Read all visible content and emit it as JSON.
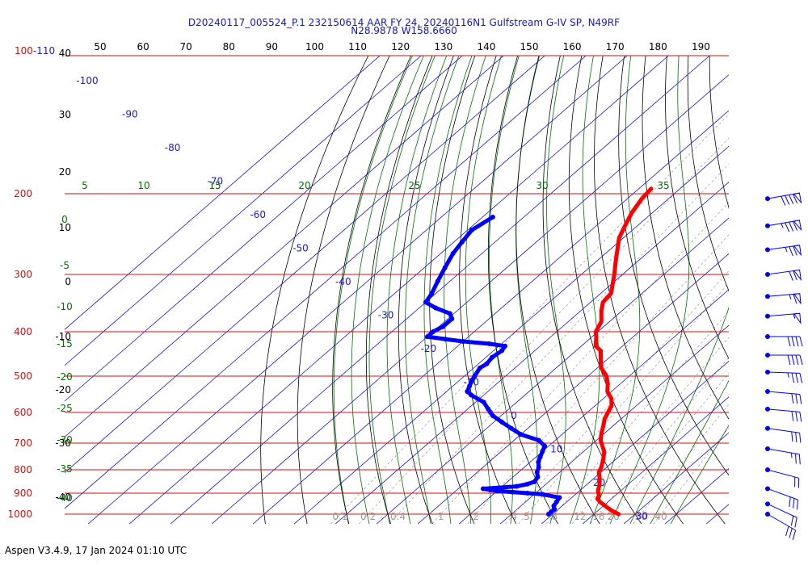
{
  "header": {
    "title": "D20240117_005524_P.1 232150614 AAR FY 24, 20240116N1 Gulfstream G-IV SP, N49RF",
    "subtitle": "N28.9878 W158.6660"
  },
  "footer": {
    "version": "Aspen V3.4.9, 17 Jan 2024  01:10 UTC"
  },
  "colors": {
    "isobar": "#d01010",
    "isotherm": "#1a1ad0",
    "dry_adiabat": "#000000",
    "moist_adiabat": "#007000",
    "mixing_ratio": "#9a9a9a",
    "temperature": "#ff0000",
    "dewpoint": "#0000ff"
  },
  "chart_data": {
    "type": "skew-t",
    "ylabel": "",
    "xlabel": "",
    "y_scale": "log-pressure",
    "ylim_hpa": [
      1000,
      100
    ],
    "pressure_levels": [
      {
        "value": 1000,
        "label": "1000"
      },
      {
        "value": 900,
        "label": "900"
      },
      {
        "value": 800,
        "label": "800"
      },
      {
        "value": 700,
        "label": "700"
      },
      {
        "value": 600,
        "label": "600"
      },
      {
        "value": 500,
        "label": "500"
      },
      {
        "value": 400,
        "label": "400"
      },
      {
        "value": 300,
        "label": "300"
      },
      {
        "value": 200,
        "label": "200"
      },
      {
        "value": 100,
        "label": "100-110"
      }
    ],
    "isotherm_labels": [
      {
        "t": -100,
        "label": "-100"
      },
      {
        "t": -90,
        "label": "-90"
      },
      {
        "t": -80,
        "label": "-80"
      },
      {
        "t": -70,
        "label": "-70"
      },
      {
        "t": -60,
        "label": "-60"
      },
      {
        "t": -50,
        "label": "-50"
      },
      {
        "t": -40,
        "label": "-40"
      },
      {
        "t": -30,
        "label": "-30"
      },
      {
        "t": -20,
        "label": "-20"
      },
      {
        "t": -10,
        "label": "-10"
      },
      {
        "t": 0,
        "label": "0"
      },
      {
        "t": 10,
        "label": "10"
      },
      {
        "t": 20,
        "label": "20"
      },
      {
        "t": 30,
        "label": "30"
      }
    ],
    "dry_adiabat_labels": [
      "50",
      "60",
      "70",
      "80",
      "90",
      "100",
      "110",
      "120",
      "130",
      "140",
      "150",
      "160",
      "170",
      "180",
      "190"
    ],
    "dry_adiabat_left_labels": [
      "40",
      "30",
      "20",
      "10",
      "0",
      "-10",
      "-20",
      "-30",
      "-40"
    ],
    "moist_adiabat_labels": [
      "5",
      "10",
      "15",
      "20",
      "25",
      "30",
      "35"
    ],
    "moist_adiabat_left_labels": [
      "0",
      "-5",
      "-10",
      "-15",
      "-20",
      "-25",
      "-30",
      "-35",
      "-40"
    ],
    "mixing_ratio_labels": [
      "0.1",
      "0.2",
      "0.4",
      "1",
      "2",
      "4",
      "5",
      "8",
      "12",
      "16",
      "20",
      "30",
      "40"
    ],
    "temperature": [
      [
        1000,
        26.0
      ],
      [
        980,
        23.0
      ],
      [
        960,
        20.5
      ],
      [
        940,
        18.0
      ],
      [
        925,
        16.5
      ],
      [
        910,
        16.0
      ],
      [
        890,
        14.5
      ],
      [
        860,
        13.0
      ],
      [
        830,
        11.0
      ],
      [
        810,
        9.5
      ],
      [
        790,
        8.7
      ],
      [
        760,
        7.0
      ],
      [
        730,
        5.0
      ],
      [
        710,
        3.0
      ],
      [
        690,
        1.0
      ],
      [
        670,
        -0.5
      ],
      [
        640,
        -2.5
      ],
      [
        620,
        -4.0
      ],
      [
        600,
        -5.0
      ],
      [
        580,
        -6.0
      ],
      [
        560,
        -8.0
      ],
      [
        540,
        -11.0
      ],
      [
        520,
        -13.0
      ],
      [
        500,
        -15.5
      ],
      [
        480,
        -19.0
      ],
      [
        460,
        -21.5
      ],
      [
        440,
        -24.0
      ],
      [
        430,
        -26.5
      ],
      [
        410,
        -29.0
      ],
      [
        400,
        -30.5
      ],
      [
        380,
        -32.0
      ],
      [
        360,
        -35.0
      ],
      [
        345,
        -37.0
      ],
      [
        330,
        -37.5
      ],
      [
        300,
        -42.0
      ],
      [
        280,
        -45.5
      ],
      [
        250,
        -51.0
      ],
      [
        235,
        -53.0
      ],
      [
        220,
        -55.0
      ],
      [
        205,
        -56.5
      ],
      [
        195,
        -57.0
      ]
    ],
    "dewpoint": [
      [
        1000,
        9.0
      ],
      [
        990,
        9.0
      ],
      [
        975,
        9.0
      ],
      [
        960,
        8.0
      ],
      [
        940,
        7.5
      ],
      [
        920,
        7.0
      ],
      [
        905,
        2.0
      ],
      [
        900,
        -2.0
      ],
      [
        895,
        -6.0
      ],
      [
        890,
        -10.0
      ],
      [
        885,
        -12.0
      ],
      [
        880,
        -14.0
      ],
      [
        870,
        -6.5
      ],
      [
        860,
        -4.5
      ],
      [
        850,
        -3.5
      ],
      [
        830,
        -4.0
      ],
      [
        810,
        -5.5
      ],
      [
        790,
        -6.5
      ],
      [
        770,
        -8.0
      ],
      [
        750,
        -9.0
      ],
      [
        730,
        -10.0
      ],
      [
        710,
        -11.0
      ],
      [
        690,
        -14.0
      ],
      [
        670,
        -20.0
      ],
      [
        650,
        -24.0
      ],
      [
        630,
        -28.0
      ],
      [
        610,
        -32.0
      ],
      [
        600,
        -33.5
      ],
      [
        590,
        -35.0
      ],
      [
        570,
        -38.0
      ],
      [
        550,
        -43.0
      ],
      [
        540,
        -45.0
      ],
      [
        525,
        -46.0
      ],
      [
        510,
        -47.0
      ],
      [
        500,
        -47.5
      ],
      [
        480,
        -48.5
      ],
      [
        470,
        -48.0
      ],
      [
        455,
        -48.5
      ],
      [
        440,
        -48.0
      ],
      [
        430,
        -48.5
      ],
      [
        425,
        -53.0
      ],
      [
        420,
        -60.0
      ],
      [
        415,
        -65.0
      ],
      [
        410,
        -70.0
      ],
      [
        400,
        -70.0
      ],
      [
        390,
        -69.0
      ],
      [
        375,
        -69.0
      ],
      [
        365,
        -71.0
      ],
      [
        355,
        -76.0
      ],
      [
        345,
        -80.0
      ],
      [
        330,
        -81.0
      ],
      [
        310,
        -83.0
      ],
      [
        290,
        -85.0
      ],
      [
        270,
        -87.0
      ],
      [
        255,
        -88.0
      ],
      [
        240,
        -89.0
      ],
      [
        225,
        -87.5
      ]
    ],
    "wind_barbs": [
      {
        "p": 205,
        "speed_kt": 90,
        "dir_deg": 260
      },
      {
        "p": 235,
        "speed_kt": 85,
        "dir_deg": 260
      },
      {
        "p": 265,
        "speed_kt": 75,
        "dir_deg": 262
      },
      {
        "p": 300,
        "speed_kt": 70,
        "dir_deg": 262
      },
      {
        "p": 335,
        "speed_kt": 65,
        "dir_deg": 265
      },
      {
        "p": 370,
        "speed_kt": 55,
        "dir_deg": 265
      },
      {
        "p": 410,
        "speed_kt": 40,
        "dir_deg": 270
      },
      {
        "p": 450,
        "speed_kt": 40,
        "dir_deg": 270
      },
      {
        "p": 490,
        "speed_kt": 35,
        "dir_deg": 272
      },
      {
        "p": 540,
        "speed_kt": 30,
        "dir_deg": 275
      },
      {
        "p": 590,
        "speed_kt": 30,
        "dir_deg": 275
      },
      {
        "p": 650,
        "speed_kt": 30,
        "dir_deg": 278
      },
      {
        "p": 720,
        "speed_kt": 25,
        "dir_deg": 280
      },
      {
        "p": 800,
        "speed_kt": 20,
        "dir_deg": 285
      },
      {
        "p": 880,
        "speed_kt": 30,
        "dir_deg": 290
      },
      {
        "p": 950,
        "speed_kt": 20,
        "dir_deg": 295
      },
      {
        "p": 1000,
        "speed_kt": 30,
        "dir_deg": 300
      }
    ]
  }
}
